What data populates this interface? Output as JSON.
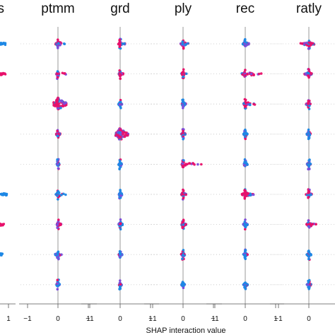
{
  "chart_data": {
    "type": "scatter",
    "subtype": "SHAP interaction summary (beeswarm grid)",
    "xlabel": "SHAP interaction value",
    "grid": false,
    "colors": {
      "low": "#1e88e5",
      "mid": "#7c4ddb",
      "high": "#e8116b",
      "zero_line": "#999999",
      "row_dots": "#cccccc"
    },
    "left_partial_panel": {
      "title": "s",
      "tick_labels": [
        "1"
      ]
    },
    "panels": [
      {
        "title": "ptmm",
        "tick_labels": [
          "−1",
          "0",
          "1"
        ],
        "xlim": [
          -1.4,
          1.4
        ],
        "rows": [
          {
            "left": 0.08,
            "right": 0.22,
            "dominant": "high"
          },
          {
            "left": 0.05,
            "right": 0.26,
            "dominant": "high"
          },
          {
            "left": 0.14,
            "right": 0.28,
            "dominant": "high",
            "wide": true
          },
          {
            "left": 0.06,
            "right": 0.08,
            "dominant": "mid"
          },
          {
            "left": 0.04,
            "right": 0.05,
            "dominant": "low"
          },
          {
            "left": 0.07,
            "right": 0.26,
            "dominant": "low"
          },
          {
            "left": 0.04,
            "right": 0.12,
            "dominant": "high"
          },
          {
            "left": 0.1,
            "right": 0.12,
            "dominant": "low"
          },
          {
            "left": 0.05,
            "right": 0.06,
            "dominant": "low"
          }
        ]
      },
      {
        "title": "grd",
        "tick_labels": [
          "−1",
          "0",
          "1"
        ],
        "xlim": [
          -1.4,
          1.4
        ],
        "rows": [
          {
            "left": 0.06,
            "right": 0.16,
            "dominant": "high"
          },
          {
            "left": 0.04,
            "right": 0.1,
            "dominant": "high"
          },
          {
            "left": 0.05,
            "right": 0.06,
            "dominant": "low"
          },
          {
            "left": 0.16,
            "right": 0.26,
            "dominant": "high",
            "wide": true
          },
          {
            "left": 0.05,
            "right": 0.06,
            "dominant": "low"
          },
          {
            "left": 0.04,
            "right": 0.08,
            "dominant": "low"
          },
          {
            "left": 0.05,
            "right": 0.08,
            "dominant": "low"
          },
          {
            "left": 0.04,
            "right": 0.07,
            "dominant": "low"
          },
          {
            "left": 0.04,
            "right": 0.05,
            "dominant": "low"
          }
        ]
      },
      {
        "title": "ply",
        "tick_labels": [
          "−1",
          "0",
          "1"
        ],
        "xlim": [
          -1.4,
          1.4
        ],
        "rows": [
          {
            "left": 0.08,
            "right": 0.22,
            "dominant": "high"
          },
          {
            "left": 0.05,
            "right": 0.12,
            "dominant": "high"
          },
          {
            "left": 0.05,
            "right": 0.1,
            "dominant": "low"
          },
          {
            "left": 0.06,
            "right": 0.1,
            "dominant": "high"
          },
          {
            "left": 0.05,
            "right": 0.62,
            "dominant": "high"
          },
          {
            "left": 0.06,
            "right": 0.1,
            "dominant": "high"
          },
          {
            "left": 0.05,
            "right": 0.1,
            "dominant": "high"
          },
          {
            "left": 0.06,
            "right": 0.08,
            "dominant": "high"
          },
          {
            "left": 0.05,
            "right": 0.06,
            "dominant": "low"
          }
        ]
      },
      {
        "title": "rec",
        "tick_labels": [
          "−1",
          "0",
          "1"
        ],
        "xlim": [
          -1.4,
          1.4
        ],
        "rows": [
          {
            "left": 0.1,
            "right": 0.14,
            "dominant": "low"
          },
          {
            "left": 0.12,
            "right": 0.6,
            "dominant": "high"
          },
          {
            "left": 0.06,
            "right": 0.32,
            "dominant": "high"
          },
          {
            "left": 0.06,
            "right": 0.08,
            "dominant": "low"
          },
          {
            "left": 0.06,
            "right": 0.08,
            "dominant": "low"
          },
          {
            "left": 0.12,
            "right": 0.3,
            "dominant": "high"
          },
          {
            "left": 0.07,
            "right": 0.08,
            "dominant": "low"
          },
          {
            "left": 0.06,
            "right": 0.08,
            "dominant": "low"
          },
          {
            "left": 0.06,
            "right": 0.08,
            "dominant": "low"
          }
        ]
      },
      {
        "title": "ratly",
        "tick_labels": [
          "−1",
          "0"
        ],
        "xlim": [
          -1.4,
          1.4
        ],
        "rows": [
          {
            "left": 0.28,
            "right": 0.18,
            "dominant": "high"
          },
          {
            "left": 0.14,
            "right": 0.1,
            "dominant": "high"
          },
          {
            "left": 0.1,
            "right": 0.06,
            "dominant": "high"
          },
          {
            "left": 0.07,
            "right": 0.06,
            "dominant": "low"
          },
          {
            "left": 0.06,
            "right": 0.06,
            "dominant": "low"
          },
          {
            "left": 0.1,
            "right": 0.1,
            "dominant": "high"
          },
          {
            "left": 0.08,
            "right": 0.26,
            "dominant": "high"
          },
          {
            "left": 0.07,
            "right": 0.08,
            "dominant": "low"
          },
          {
            "left": 0.06,
            "right": 0.08,
            "dominant": "low"
          }
        ]
      }
    ]
  }
}
